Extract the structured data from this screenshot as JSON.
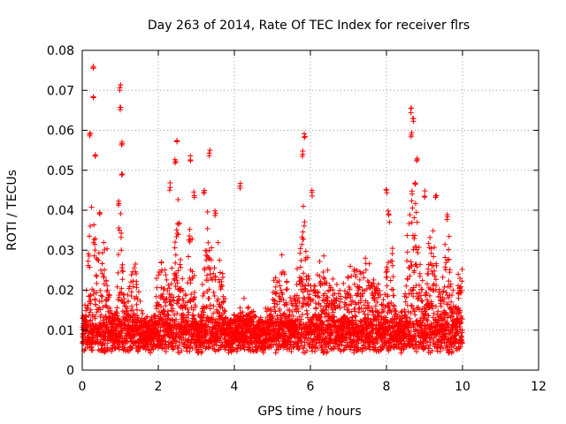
{
  "chart_data": {
    "type": "scatter",
    "title": "Day 263 of 2014, Rate Of TEC Index for receiver flrs",
    "xlabel": "GPS time / hours",
    "ylabel": "ROTI / TECUs",
    "xlim": [
      0,
      12
    ],
    "ylim": [
      0,
      0.08
    ],
    "x_ticks": [
      0,
      2,
      4,
      6,
      8,
      10,
      12
    ],
    "y_ticks": [
      0,
      0.01,
      0.02,
      0.03,
      0.04,
      0.05,
      0.06,
      0.07,
      0.08
    ],
    "x_tick_labels": [
      "0",
      "2",
      "4",
      "6",
      "8",
      "10",
      "12"
    ],
    "y_tick_labels": [
      "0",
      "0.01",
      "0.02",
      "0.03",
      "0.04",
      "0.05",
      "0.06",
      "0.07",
      "0.08"
    ],
    "grid": true,
    "marker": "+",
    "series": [
      {
        "name": "ROTI",
        "color": "#ff0000",
        "x_range": [
          0,
          10
        ],
        "n_points": 4200,
        "baseline_range": [
          0.004,
          0.015
        ],
        "notable_points": [
          {
            "x": 0.3,
            "y": 0.077
          },
          {
            "x": 0.3,
            "y": 0.069
          },
          {
            "x": 0.2,
            "y": 0.06
          },
          {
            "x": 0.35,
            "y": 0.055
          },
          {
            "x": 0.45,
            "y": 0.04
          },
          {
            "x": 1.0,
            "y": 0.072
          },
          {
            "x": 1.0,
            "y": 0.066
          },
          {
            "x": 1.05,
            "y": 0.058
          },
          {
            "x": 0.95,
            "y": 0.043
          },
          {
            "x": 1.05,
            "y": 0.05
          },
          {
            "x": 2.5,
            "y": 0.058
          },
          {
            "x": 2.45,
            "y": 0.053
          },
          {
            "x": 2.3,
            "y": 0.047
          },
          {
            "x": 2.85,
            "y": 0.054
          },
          {
            "x": 2.95,
            "y": 0.045
          },
          {
            "x": 3.35,
            "y": 0.055
          },
          {
            "x": 3.2,
            "y": 0.045
          },
          {
            "x": 3.5,
            "y": 0.04
          },
          {
            "x": 4.15,
            "y": 0.047
          },
          {
            "x": 5.85,
            "y": 0.06
          },
          {
            "x": 5.8,
            "y": 0.055
          },
          {
            "x": 6.05,
            "y": 0.045
          },
          {
            "x": 8.0,
            "y": 0.046
          },
          {
            "x": 8.05,
            "y": 0.04
          },
          {
            "x": 8.65,
            "y": 0.066
          },
          {
            "x": 8.7,
            "y": 0.063
          },
          {
            "x": 8.65,
            "y": 0.06
          },
          {
            "x": 8.8,
            "y": 0.053
          },
          {
            "x": 8.75,
            "y": 0.047
          },
          {
            "x": 9.0,
            "y": 0.045
          },
          {
            "x": 9.3,
            "y": 0.044
          },
          {
            "x": 9.6,
            "y": 0.039
          }
        ]
      }
    ]
  }
}
